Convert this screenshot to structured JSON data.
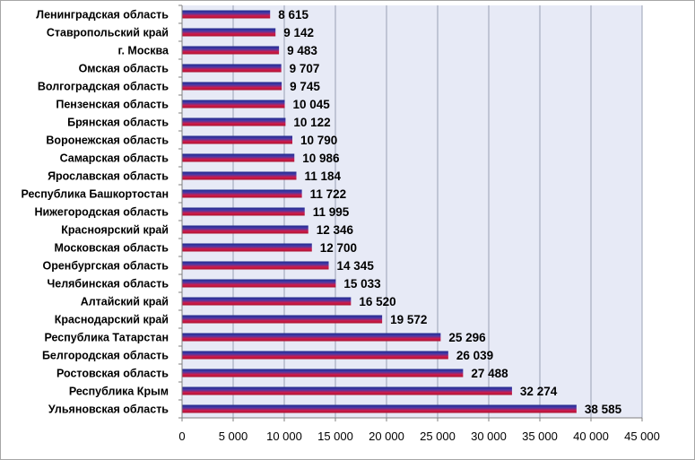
{
  "chart_data": {
    "type": "bar",
    "orientation": "horizontal",
    "title": "",
    "xlabel": "",
    "ylabel": "",
    "xlim": [
      0,
      45000
    ],
    "x_ticks": [
      0,
      5000,
      10000,
      15000,
      20000,
      25000,
      30000,
      35000,
      40000,
      45000
    ],
    "x_tick_labels": [
      "0",
      "5 000",
      "10 000",
      "15 000",
      "20 000",
      "25 000",
      "30 000",
      "35 000",
      "40 000",
      "45 000"
    ],
    "grid": "vertical",
    "legend": "none",
    "categories": [
      "Ленинградская область",
      "Ставропольский край",
      "г. Москва",
      "Омская область",
      "Волгоградская область",
      "Пензенская область",
      "Брянская область",
      "Воронежская область",
      "Самарская область",
      "Ярославская область",
      "Республика Башкортостан",
      "Нижегородская область",
      "Красноярский край",
      "Московская область",
      "Оренбургская область",
      "Челябинская область",
      "Алтайский край",
      "Краснодарский край",
      "Республика Татарстан",
      "Белгородская область",
      "Ростовская область",
      "Республика Крым",
      "Ульяновская область"
    ],
    "values": [
      8615,
      9142,
      9483,
      9707,
      9745,
      10045,
      10122,
      10790,
      10986,
      11184,
      11722,
      11995,
      12346,
      12700,
      14345,
      15033,
      16520,
      19572,
      25296,
      26039,
      27488,
      32274,
      38585
    ],
    "value_labels": [
      "8 615",
      "9 142",
      "9 483",
      "9 707",
      "9 745",
      "10 045",
      "10 122",
      "10 790",
      "10 986",
      "11 184",
      "11 722",
      "11 995",
      "12 346",
      "12 700",
      "14 345",
      "15 033",
      "16 520",
      "19 572",
      "25 296",
      "26 039",
      "27 488",
      "32 274",
      "38 585"
    ],
    "colors": {
      "plot_background": "#e7eaf6",
      "gridline": "#9aa0b4",
      "axis": "#7f7f7f",
      "bar_gradient": [
        "#1f2a8c",
        "#4b3aa8",
        "#d01a4a",
        "#a8122f"
      ]
    }
  }
}
